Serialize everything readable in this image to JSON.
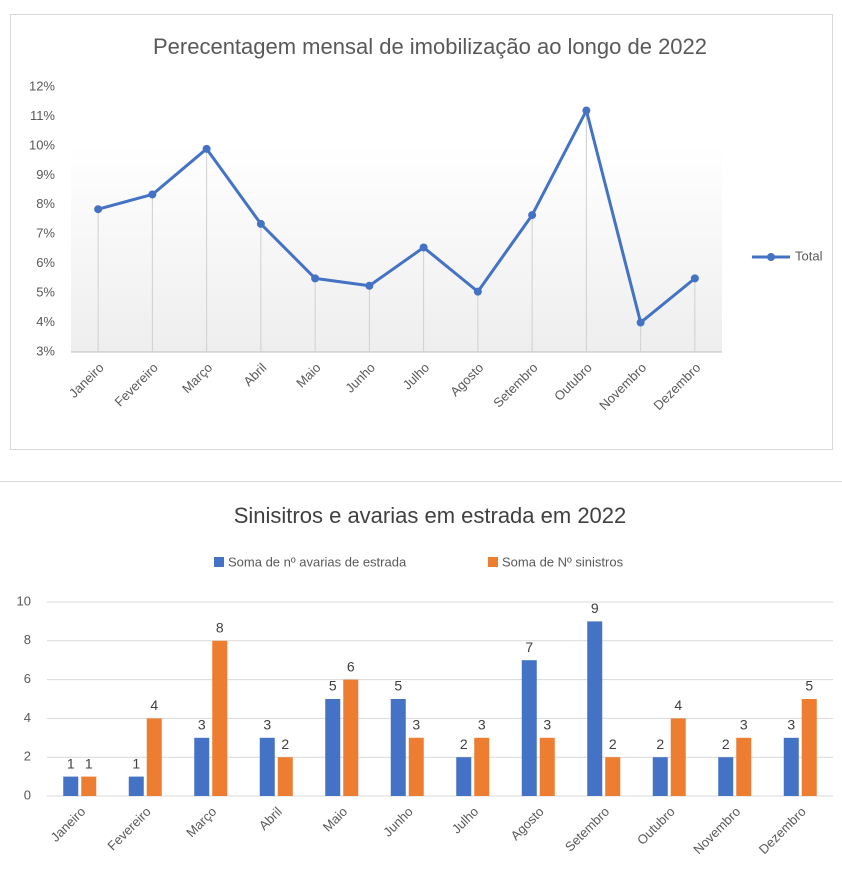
{
  "chart_data": [
    {
      "type": "line",
      "title": "Perecentagem mensal de imobilização ao longo de 2022",
      "categories": [
        "Janeiro",
        "Fevereiro",
        "Março",
        "Abril",
        "Maio",
        "Junho",
        "Julho",
        "Agosto",
        "Setembro",
        "Outubro",
        "Novembro",
        "Dezembro"
      ],
      "series": [
        {
          "name": "Total",
          "color": "#4472c4",
          "values": [
            7.85,
            8.35,
            9.9,
            7.35,
            5.5,
            5.25,
            6.55,
            5.05,
            7.65,
            11.2,
            4.0,
            5.5
          ]
        }
      ],
      "ylim": [
        3,
        12
      ],
      "yticks": [
        {
          "value": 3,
          "label": "3%"
        },
        {
          "value": 4,
          "label": "4%"
        },
        {
          "value": 5,
          "label": "5%"
        },
        {
          "value": 6,
          "label": "6%"
        },
        {
          "value": 7,
          "label": "7%"
        },
        {
          "value": 8,
          "label": "8%"
        },
        {
          "value": 9,
          "label": "9%"
        },
        {
          "value": 10,
          "label": "10%"
        },
        {
          "value": 11,
          "label": "11%"
        },
        {
          "value": 12,
          "label": "12%"
        }
      ],
      "legend": "right",
      "drop_lines": true
    },
    {
      "type": "bar",
      "title": "Sinisitros e avarias em estrada em 2022",
      "categories": [
        "Janeiro",
        "Fevereiro",
        "Março",
        "Abril",
        "Maio",
        "Junho",
        "Julho",
        "Agosto",
        "Setembro",
        "Outubro",
        "Novembro",
        "Dezembro"
      ],
      "series": [
        {
          "name": "Soma de nº avarias de estrada",
          "color": "#4472c4",
          "values": [
            1,
            1,
            3,
            3,
            5,
            5,
            2,
            7,
            9,
            2,
            2,
            3
          ]
        },
        {
          "name": "Soma de Nº sinistros",
          "color": "#ed7d31",
          "values": [
            1,
            4,
            8,
            2,
            6,
            3,
            3,
            3,
            2,
            4,
            3,
            5
          ]
        }
      ],
      "ylim": [
        0,
        10
      ],
      "yticks": [
        0,
        2,
        4,
        6,
        8,
        10
      ],
      "grid": true,
      "legend": "top",
      "data_labels": true
    }
  ]
}
